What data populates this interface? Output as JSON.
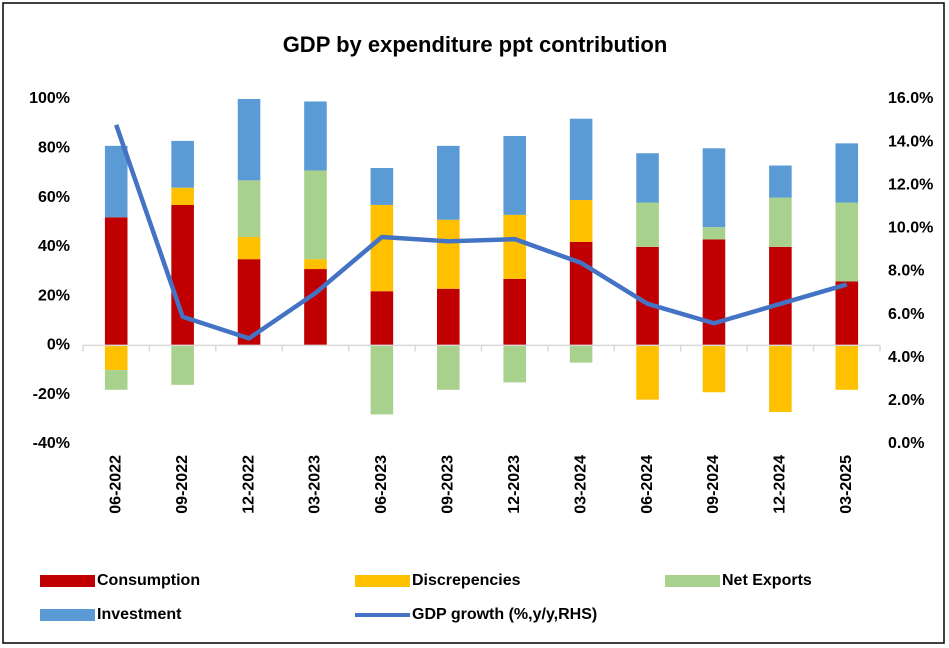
{
  "chart_data": {
    "type": "bar",
    "title": "GDP by expenditure ppt contribution",
    "categories": [
      "06-2022",
      "09-2022",
      "12-2022",
      "03-2023",
      "06-2023",
      "09-2023",
      "12-2023",
      "03-2024",
      "06-2024",
      "09-2024",
      "12-2024",
      "03-2025"
    ],
    "series": [
      {
        "name": "Consumption",
        "color": "#c00000",
        "type": "bar",
        "values": [
          52,
          57,
          35,
          31,
          22,
          23,
          27,
          42,
          40,
          43,
          40,
          26
        ]
      },
      {
        "name": "Discrepencies",
        "color": "#ffc000",
        "type": "bar",
        "values": [
          -10,
          7,
          9,
          4,
          35,
          28,
          26,
          17,
          -22,
          -19,
          -27,
          -18
        ]
      },
      {
        "name": "Net Exports",
        "color": "#a9d18e",
        "type": "bar",
        "values": [
          -8,
          -16,
          23,
          36,
          -28,
          -18,
          -15,
          -7,
          18,
          5,
          20,
          32
        ]
      },
      {
        "name": "Investment",
        "color": "#5b9bd5",
        "type": "bar",
        "values": [
          29,
          19,
          33,
          28,
          15,
          30,
          32,
          33,
          20,
          32,
          13,
          24
        ]
      },
      {
        "name": "GDP growth (%,y/y,RHS)",
        "color": "#4472c4",
        "type": "line",
        "axis": "y2",
        "values": [
          14.8,
          5.9,
          4.9,
          7.0,
          9.6,
          9.4,
          9.5,
          8.4,
          6.5,
          5.6,
          6.5,
          7.4
        ]
      }
    ],
    "ylim": [
      -40,
      100
    ],
    "yticks": [
      {
        "value": -40,
        "label": "-40%"
      },
      {
        "value": -20,
        "label": "-20%"
      },
      {
        "value": 0,
        "label": "0%"
      },
      {
        "value": 20,
        "label": "20%"
      },
      {
        "value": 40,
        "label": "40%"
      },
      {
        "value": 60,
        "label": "60%"
      },
      {
        "value": 80,
        "label": "80%"
      },
      {
        "value": 100,
        "label": "100%"
      }
    ],
    "y2lim": [
      0,
      16
    ],
    "y2ticks": [
      {
        "value": 0,
        "label": "0.0%"
      },
      {
        "value": 2,
        "label": "2.0%"
      },
      {
        "value": 4,
        "label": "4.0%"
      },
      {
        "value": 6,
        "label": "6.0%"
      },
      {
        "value": 8,
        "label": "8.0%"
      },
      {
        "value": 10,
        "label": "10.0%"
      },
      {
        "value": 12,
        "label": "12.0%"
      },
      {
        "value": 14,
        "label": "14.0%"
      },
      {
        "value": 16,
        "label": "16.0%"
      }
    ],
    "stacked": true,
    "grid": false
  }
}
